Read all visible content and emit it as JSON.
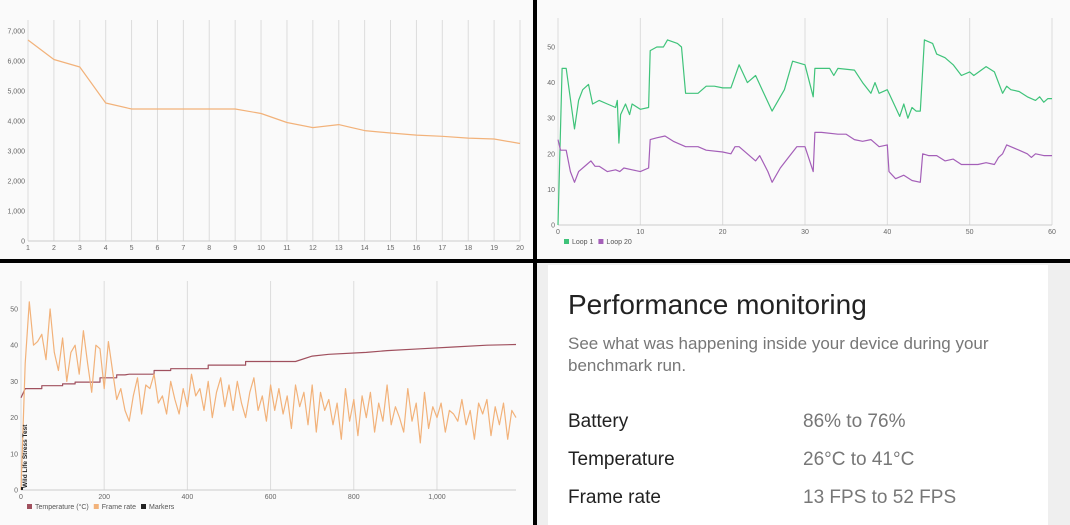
{
  "chart_data": [
    {
      "type": "line",
      "x": [
        1,
        2,
        3,
        4,
        5,
        6,
        7,
        8,
        9,
        10,
        11,
        12,
        13,
        14,
        15,
        16,
        17,
        18,
        19,
        20
      ],
      "series": [
        {
          "values": [
            6700,
            6050,
            5800,
            4600,
            4400,
            4400,
            4400,
            4400,
            4400,
            4250,
            3950,
            3780,
            3880,
            3680,
            3600,
            3530,
            3490,
            3430,
            3400,
            3250
          ],
          "color": "#f2b27a"
        }
      ],
      "xlim": [
        1,
        20
      ],
      "ylim": [
        0,
        7000
      ],
      "yticks": [
        "0",
        "1,000",
        "2,000",
        "3,000",
        "4,000",
        "5,000",
        "6,000",
        "7,000"
      ],
      "xticks": [
        "1",
        "2",
        "3",
        "4",
        "5",
        "6",
        "7",
        "8",
        "9",
        "10",
        "11",
        "12",
        "13",
        "14",
        "15",
        "16",
        "17",
        "18",
        "19",
        "20"
      ],
      "grid": "vertical"
    },
    {
      "type": "line",
      "xlim": [
        0,
        60
      ],
      "ylim": [
        0,
        55
      ],
      "xticks": [
        "0",
        "10",
        "20",
        "30",
        "40",
        "50",
        "60"
      ],
      "yticks": [
        "0",
        "10",
        "20",
        "30",
        "40",
        "50"
      ],
      "grid": "vertical",
      "legend": "bottom-left",
      "series": [
        {
          "name": "Loop 1",
          "color": "#3fc37a",
          "points": [
            [
              0,
              0
            ],
            [
              0.5,
              44
            ],
            [
              1,
              44
            ],
            [
              2,
              27
            ],
            [
              2.5,
              35
            ],
            [
              3,
              38
            ],
            [
              3.7,
              39.5
            ],
            [
              4.2,
              34
            ],
            [
              5,
              35
            ],
            [
              6,
              34
            ],
            [
              7,
              33
            ],
            [
              7.2,
              35
            ],
            [
              7.4,
              23
            ],
            [
              7.6,
              31
            ],
            [
              8.2,
              34
            ],
            [
              8.7,
              31
            ],
            [
              9,
              34
            ],
            [
              10,
              32.5
            ],
            [
              11,
              33
            ],
            [
              11.2,
              49
            ],
            [
              12,
              50
            ],
            [
              12.8,
              50
            ],
            [
              13.3,
              52
            ],
            [
              14.5,
              51
            ],
            [
              15,
              50
            ],
            [
              15.5,
              37
            ],
            [
              17,
              37
            ],
            [
              18,
              39
            ],
            [
              19,
              39
            ],
            [
              20,
              38.5
            ],
            [
              21,
              38.5
            ],
            [
              22,
              45
            ],
            [
              23,
              40
            ],
            [
              24,
              42
            ],
            [
              25,
              37
            ],
            [
              26,
              32
            ],
            [
              27.5,
              38
            ],
            [
              28.5,
              46
            ],
            [
              30,
              45
            ],
            [
              31,
              36
            ],
            [
              31.2,
              44
            ],
            [
              33,
              44
            ],
            [
              33.5,
              42
            ],
            [
              34,
              44
            ],
            [
              36,
              43.5
            ],
            [
              37,
              40
            ],
            [
              38,
              37
            ],
            [
              38.5,
              40
            ],
            [
              39,
              37
            ],
            [
              40,
              38
            ],
            [
              41,
              33
            ],
            [
              41.5,
              30.5
            ],
            [
              42,
              34
            ],
            [
              42.5,
              30
            ],
            [
              43,
              33
            ],
            [
              43.5,
              32
            ],
            [
              44,
              32
            ],
            [
              44.5,
              52
            ],
            [
              45.5,
              51
            ],
            [
              46,
              48
            ],
            [
              47,
              47
            ],
            [
              48,
              45
            ],
            [
              49,
              42
            ],
            [
              50,
              43
            ],
            [
              50.5,
              42
            ],
            [
              52,
              44.5
            ],
            [
              53,
              43
            ],
            [
              54,
              37
            ],
            [
              54.5,
              39
            ],
            [
              55,
              38
            ],
            [
              56,
              37.5
            ],
            [
              57,
              36
            ],
            [
              58,
              35
            ],
            [
              58.5,
              36
            ],
            [
              59,
              34.5
            ],
            [
              59.5,
              35.5
            ],
            [
              60,
              35.5
            ]
          ]
        },
        {
          "name": "Loop 20",
          "color": "#a45fb8",
          "points": [
            [
              0,
              24
            ],
            [
              0.3,
              21
            ],
            [
              1,
              21
            ],
            [
              1.5,
              15
            ],
            [
              2,
              12
            ],
            [
              2.5,
              15
            ],
            [
              3.5,
              17
            ],
            [
              4,
              18
            ],
            [
              4.5,
              16.5
            ],
            [
              5,
              16.5
            ],
            [
              6,
              15
            ],
            [
              7,
              15.5
            ],
            [
              7.5,
              15
            ],
            [
              8,
              16
            ],
            [
              9,
              15.5
            ],
            [
              10,
              15
            ],
            [
              11,
              16
            ],
            [
              11.2,
              24
            ],
            [
              12,
              24.5
            ],
            [
              13,
              25
            ],
            [
              14,
              23.5
            ],
            [
              15.5,
              22
            ],
            [
              17,
              22
            ],
            [
              18,
              21
            ],
            [
              20,
              20.5
            ],
            [
              21,
              20
            ],
            [
              21.5,
              22
            ],
            [
              22,
              22
            ],
            [
              24,
              18
            ],
            [
              24.5,
              19.5
            ],
            [
              25.5,
              15
            ],
            [
              26,
              12
            ],
            [
              27,
              16
            ],
            [
              28,
              19
            ],
            [
              29,
              22
            ],
            [
              30,
              22
            ],
            [
              31,
              15
            ],
            [
              31.2,
              26
            ],
            [
              32,
              26
            ],
            [
              34,
              25.5
            ],
            [
              35,
              25.5
            ],
            [
              36,
              24
            ],
            [
              37,
              23.5
            ],
            [
              38,
              24
            ],
            [
              39,
              22
            ],
            [
              40,
              22.5
            ],
            [
              40.2,
              15
            ],
            [
              41,
              13
            ],
            [
              42,
              14
            ],
            [
              43,
              12.5
            ],
            [
              44,
              12
            ],
            [
              44.3,
              20
            ],
            [
              45,
              19.5
            ],
            [
              46,
              19.5
            ],
            [
              47,
              18
            ],
            [
              48,
              18.5
            ],
            [
              49,
              17
            ],
            [
              50,
              17
            ],
            [
              51,
              17
            ],
            [
              52,
              17.5
            ],
            [
              53,
              17
            ],
            [
              53.5,
              19
            ],
            [
              54,
              20
            ],
            [
              54.5,
              22.5
            ],
            [
              55,
              22
            ],
            [
              56,
              21
            ],
            [
              57,
              20
            ],
            [
              57.5,
              19
            ],
            [
              58,
              20
            ],
            [
              59,
              19.5
            ],
            [
              60,
              19.5
            ]
          ]
        }
      ]
    },
    {
      "type": "line",
      "xlim": [
        0,
        1190
      ],
      "ylim": [
        0,
        55
      ],
      "xticks": [
        "0",
        "200",
        "400",
        "600",
        "800",
        "1,000"
      ],
      "yticks": [
        "0",
        "10",
        "20",
        "30",
        "40",
        "50"
      ],
      "grid": "vertical",
      "legend": "bottom-left",
      "annotations": [
        {
          "x": 0,
          "label": "Wild Life Stress Test"
        }
      ],
      "legend_entries": [
        {
          "name": "Temperature (°C)",
          "color": "#a0505e"
        },
        {
          "name": "Frame rate",
          "color": "#f2b27a"
        },
        {
          "name": "Markers",
          "color": "#222222"
        }
      ],
      "series": [
        {
          "name": "Temperature (°C)",
          "color": "#a0505e",
          "points": [
            [
              0,
              25.5
            ],
            [
              10,
              28
            ],
            [
              50,
              28
            ],
            [
              50,
              28.8
            ],
            [
              100,
              28.8
            ],
            [
              100,
              29.3
            ],
            [
              130,
              29.3
            ],
            [
              130,
              29.8
            ],
            [
              190,
              29.8
            ],
            [
              190,
              31
            ],
            [
              230,
              31
            ],
            [
              230,
              31.8
            ],
            [
              250,
              31.8
            ],
            [
              260,
              32
            ],
            [
              320,
              32
            ],
            [
              320,
              33
            ],
            [
              360,
              33
            ],
            [
              360,
              33.5
            ],
            [
              450,
              33.5
            ],
            [
              450,
              34.5
            ],
            [
              540,
              34.5
            ],
            [
              540,
              35.5
            ],
            [
              660,
              35.5
            ],
            [
              700,
              37
            ],
            [
              740,
              37.5
            ],
            [
              830,
              38
            ],
            [
              880,
              38.5
            ],
            [
              960,
              39
            ],
            [
              1040,
              39.5
            ],
            [
              1120,
              40
            ],
            [
              1190,
              40.2
            ]
          ]
        },
        {
          "name": "Frame rate",
          "color": "#f2b27a",
          "step": 10,
          "values": [
            0,
            35,
            52,
            40,
            41,
            43,
            36,
            50,
            38,
            33,
            42,
            30,
            38,
            40,
            32,
            44,
            35,
            27,
            40,
            39,
            28,
            41,
            33,
            25,
            28,
            22,
            19,
            26,
            31,
            21,
            29,
            28,
            32,
            24,
            26,
            21,
            30,
            25,
            21,
            28,
            23,
            32,
            26,
            28,
            22,
            30,
            20,
            27,
            31,
            23,
            29,
            22,
            30,
            24,
            20,
            27,
            31,
            22,
            26,
            19,
            29,
            22,
            28,
            21,
            26,
            17,
            29,
            23,
            27,
            18,
            29,
            16,
            27,
            22,
            25,
            18,
            24,
            14,
            28,
            19,
            25,
            15,
            26,
            20,
            27,
            16,
            24,
            19,
            29,
            18,
            23,
            20,
            16,
            28,
            19,
            24,
            13,
            27,
            17,
            23,
            20,
            24,
            16,
            22,
            21,
            19,
            25,
            18,
            22,
            14,
            24,
            21,
            25,
            15,
            23,
            18,
            24,
            14,
            22,
            20
          ]
        }
      ]
    }
  ],
  "summary": {
    "title": "Performance monitoring",
    "description": "See what was happening inside your device during your benchmark run.",
    "rows": [
      {
        "label": "Battery",
        "value": "86% to 76%"
      },
      {
        "label": "Temperature",
        "value": "26°C to 41°C"
      },
      {
        "label": "Frame rate",
        "value": "13 FPS to 52 FPS"
      }
    ]
  }
}
